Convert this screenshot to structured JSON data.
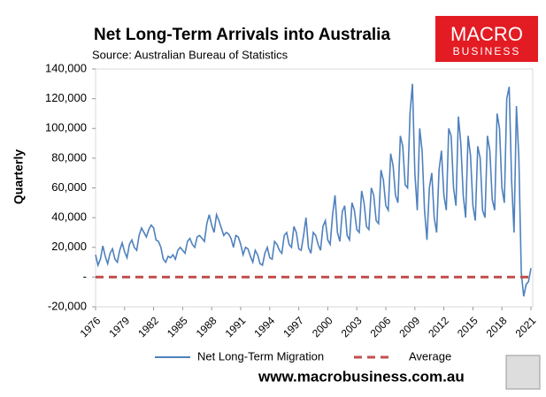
{
  "chart_data": {
    "type": "line",
    "title": "Net Long-Term Arrivals into Australia",
    "subtitle": "Source: Australian Bureau of Statistics",
    "y_label": "Quarterly",
    "logo": {
      "top": "MACRO",
      "bottom": "BUSINESS"
    },
    "footer": "www.macrobusiness.com.au",
    "xlim": [
      1976,
      2021
    ],
    "xticks": [
      1976,
      1979,
      1982,
      1985,
      1988,
      1991,
      1994,
      1997,
      2000,
      2003,
      2006,
      2009,
      2012,
      2015,
      2018,
      2021
    ],
    "ylim": [
      -20000,
      140000
    ],
    "yticks": [
      {
        "value": -20000,
        "label": "-20,000"
      },
      {
        "value": 0,
        "label": "-"
      },
      {
        "value": 20000,
        "label": "20,000"
      },
      {
        "value": 40000,
        "label": "40,000"
      },
      {
        "value": 60000,
        "label": "60,000"
      },
      {
        "value": 80000,
        "label": "80,000"
      },
      {
        "value": 100000,
        "label": "100,000"
      },
      {
        "value": 120000,
        "label": "120,000"
      },
      {
        "value": 140000,
        "label": "140,000"
      }
    ],
    "grid": false,
    "series": [
      {
        "name": "Net Long-Term Migration",
        "color": "#4f81bd",
        "dash": false,
        "x": [
          1976,
          1976.25,
          1976.5,
          1976.75,
          1977,
          1977.25,
          1977.5,
          1977.75,
          1978,
          1978.25,
          1978.5,
          1978.75,
          1979,
          1979.25,
          1979.5,
          1979.75,
          1980,
          1980.25,
          1980.5,
          1980.75,
          1981,
          1981.25,
          1981.5,
          1981.75,
          1982,
          1982.25,
          1982.5,
          1982.75,
          1983,
          1983.25,
          1983.5,
          1983.75,
          1984,
          1984.25,
          1984.5,
          1984.75,
          1985,
          1985.25,
          1985.5,
          1985.75,
          1986,
          1986.25,
          1986.5,
          1986.75,
          1987,
          1987.25,
          1987.5,
          1987.75,
          1988,
          1988.25,
          1988.5,
          1988.75,
          1989,
          1989.25,
          1989.5,
          1989.75,
          1990,
          1990.25,
          1990.5,
          1990.75,
          1991,
          1991.25,
          1991.5,
          1991.75,
          1992,
          1992.25,
          1992.5,
          1992.75,
          1993,
          1993.25,
          1993.5,
          1993.75,
          1994,
          1994.25,
          1994.5,
          1994.75,
          1995,
          1995.25,
          1995.5,
          1995.75,
          1996,
          1996.25,
          1996.5,
          1996.75,
          1997,
          1997.25,
          1997.5,
          1997.75,
          1998,
          1998.25,
          1998.5,
          1998.75,
          1999,
          1999.25,
          1999.5,
          1999.75,
          2000,
          2000.25,
          2000.5,
          2000.75,
          2001,
          2001.25,
          2001.5,
          2001.75,
          2002,
          2002.25,
          2002.5,
          2002.75,
          2003,
          2003.25,
          2003.5,
          2003.75,
          2004,
          2004.25,
          2004.5,
          2004.75,
          2005,
          2005.25,
          2005.5,
          2005.75,
          2006,
          2006.25,
          2006.5,
          2006.75,
          2007,
          2007.25,
          2007.5,
          2007.75,
          2008,
          2008.25,
          2008.5,
          2008.75,
          2009,
          2009.25,
          2009.5,
          2009.75,
          2010,
          2010.25,
          2010.5,
          2010.75,
          2011,
          2011.25,
          2011.5,
          2011.75,
          2012,
          2012.25,
          2012.5,
          2012.75,
          2013,
          2013.25,
          2013.5,
          2013.75,
          2014,
          2014.25,
          2014.5,
          2014.75,
          2015,
          2015.25,
          2015.5,
          2015.75,
          2016,
          2016.25,
          2016.5,
          2016.75,
          2017,
          2017.25,
          2017.5,
          2017.75,
          2018,
          2018.25,
          2018.5,
          2018.75,
          2019,
          2019.25,
          2019.5,
          2019.75,
          2020,
          2020.25,
          2020.5,
          2020.75,
          2021
        ],
        "values": [
          15000,
          8000,
          12000,
          21000,
          14000,
          9000,
          16000,
          19000,
          12000,
          10000,
          18000,
          23000,
          17000,
          13000,
          22000,
          25000,
          20000,
          18000,
          28000,
          33000,
          30000,
          27000,
          32000,
          35000,
          33000,
          25000,
          24000,
          20000,
          12000,
          10000,
          14000,
          13000,
          15000,
          12000,
          18000,
          20000,
          18000,
          16000,
          24000,
          26000,
          22000,
          20000,
          27000,
          28000,
          26000,
          24000,
          36000,
          42000,
          35000,
          30000,
          42000,
          38000,
          33000,
          28000,
          30000,
          29000,
          26000,
          20000,
          28000,
          27000,
          22000,
          15000,
          20000,
          19000,
          14000,
          10000,
          18000,
          15000,
          9000,
          8000,
          16000,
          20000,
          13000,
          12000,
          24000,
          22000,
          18000,
          16000,
          28000,
          30000,
          22000,
          20000,
          34000,
          30000,
          19000,
          18000,
          28000,
          40000,
          20000,
          16000,
          30000,
          28000,
          22000,
          18000,
          34000,
          38000,
          25000,
          22000,
          42000,
          55000,
          30000,
          24000,
          44000,
          48000,
          28000,
          25000,
          50000,
          45000,
          32000,
          30000,
          58000,
          50000,
          34000,
          32000,
          60000,
          55000,
          38000,
          36000,
          72000,
          65000,
          48000,
          45000,
          83000,
          75000,
          55000,
          50000,
          95000,
          88000,
          62000,
          60000,
          110000,
          130000,
          70000,
          45000,
          100000,
          85000,
          45000,
          25000,
          60000,
          70000,
          40000,
          30000,
          72000,
          85000,
          55000,
          45000,
          100000,
          95000,
          60000,
          48000,
          108000,
          90000,
          55000,
          40000,
          95000,
          82000,
          48000,
          38000,
          88000,
          80000,
          45000,
          40000,
          95000,
          85000,
          52000,
          45000,
          110000,
          100000,
          60000,
          50000,
          120000,
          128000,
          65000,
          30000,
          115000,
          80000,
          3000,
          -13000,
          -5000,
          -3000,
          6000
        ]
      },
      {
        "name": "Average",
        "color": "#c0504d",
        "dash": true,
        "x": [
          1976,
          2021
        ],
        "values": [
          0,
          0
        ]
      }
    ]
  }
}
